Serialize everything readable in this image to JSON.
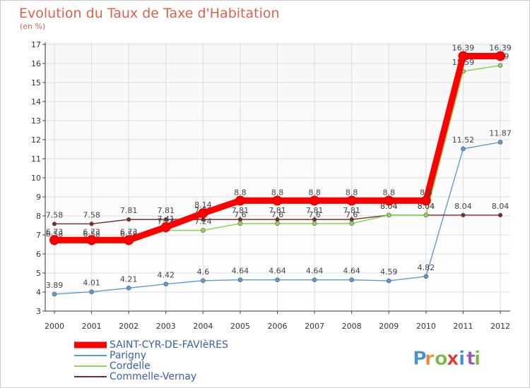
{
  "chart_data": {
    "type": "line",
    "title": "Evolution du Taux de Taxe d'Habitation",
    "subtitle": "(en %)",
    "x": [
      "2000",
      "2001",
      "2002",
      "2003",
      "2004",
      "2005",
      "2006",
      "2007",
      "2008",
      "2009",
      "2010",
      "2011",
      "2012"
    ],
    "ylim": [
      3,
      17
    ],
    "yticks": [
      3,
      4,
      5,
      6,
      7,
      8,
      9,
      10,
      11,
      12,
      13,
      14,
      15,
      16,
      17
    ],
    "grid": true,
    "legend_position": "bottom-left",
    "series": [
      {
        "name": "SAINT-CYR-DE-FAVIèRES",
        "color": "#ff0000",
        "values": [
          6.73,
          6.73,
          6.73,
          7.41,
          8.14,
          8.8,
          8.8,
          8.8,
          8.8,
          8.8,
          8.8,
          16.39,
          16.39
        ],
        "labels": [
          "6.73",
          "6.73",
          "6.73",
          "7.41",
          "8.14",
          "8.8",
          "8.8",
          "8.8",
          "8.8",
          "8.8",
          "8.8",
          "16.39",
          "16.39"
        ]
      },
      {
        "name": "Parigny",
        "color": "#5b9bd5",
        "values": [
          3.89,
          4.01,
          4.21,
          4.42,
          4.6,
          4.64,
          4.64,
          4.64,
          4.64,
          4.59,
          4.82,
          11.52,
          11.87
        ],
        "labels": [
          "3.89",
          "4.01",
          "4.21",
          "4.42",
          "4.6",
          "4.64",
          "4.64",
          "4.64",
          "4.64",
          "4.59",
          "4.82",
          "11.52",
          "11.87"
        ]
      },
      {
        "name": "Cordelle",
        "color": "#90d65c",
        "values": [
          6.58,
          6.58,
          6.58,
          7.24,
          7.24,
          7.6,
          7.6,
          7.6,
          7.6,
          8.04,
          8.04,
          15.59,
          15.9
        ],
        "labels": [
          "6.58",
          "6.58",
          "6.58",
          "7.24",
          "7.24",
          "7.6",
          "7.6",
          "7.6",
          "7.6",
          "8.04",
          "8.04",
          "15.59",
          "15.9"
        ]
      },
      {
        "name": "Commelle-Vernay",
        "color": "#7b2c2c",
        "values": [
          7.58,
          7.58,
          7.81,
          7.81,
          7.81,
          7.81,
          7.81,
          7.81,
          7.81,
          8.04,
          8.04,
          8.04,
          8.04
        ],
        "labels": [
          "7.58",
          "7.58",
          "7.81",
          "7.81",
          "7.81",
          "7.81",
          "7.81",
          "7.81",
          "7.81",
          "8.04",
          "8.04",
          "8.04",
          "8.04"
        ]
      }
    ]
  },
  "logo": {
    "letters": [
      "P",
      "r",
      "o",
      "x",
      "i",
      "t",
      "i"
    ]
  }
}
